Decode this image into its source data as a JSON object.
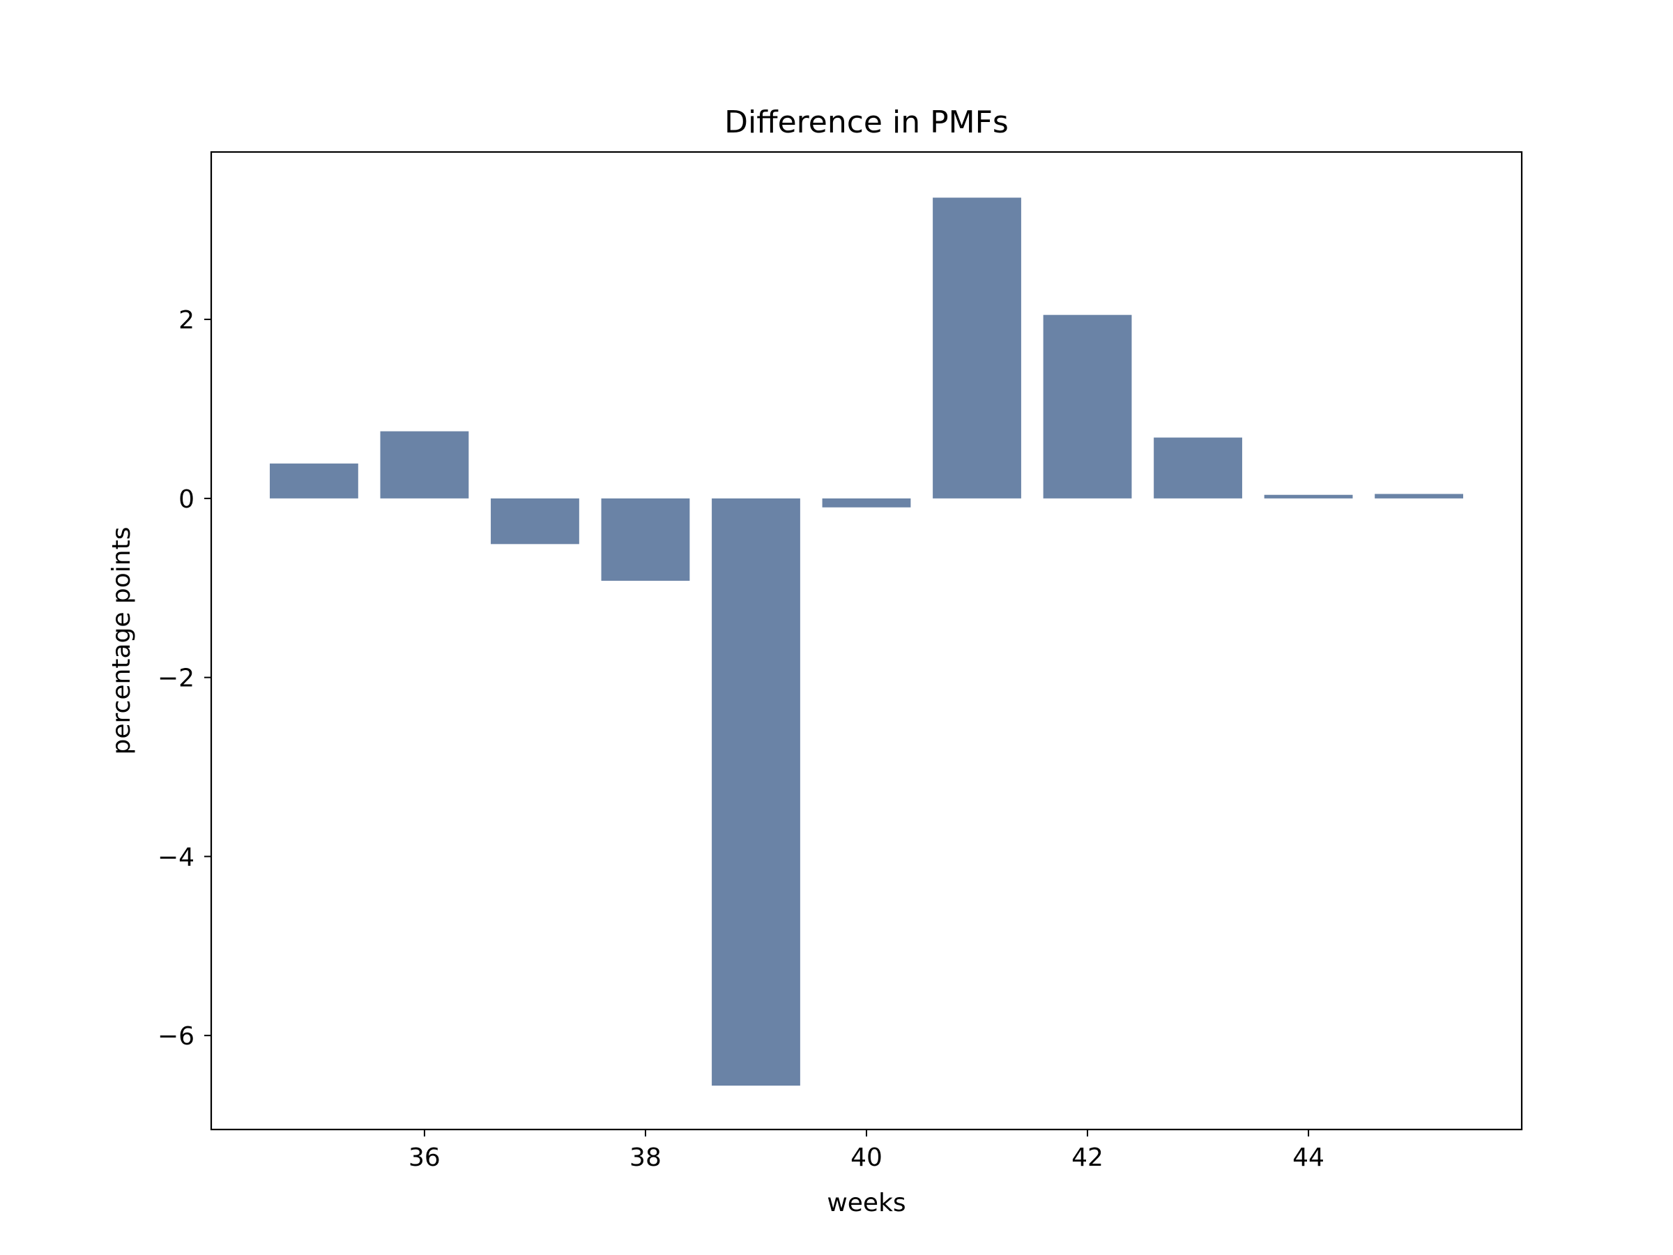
{
  "chart_data": {
    "type": "bar",
    "title": "Difference in PMFs",
    "xlabel": "weeks",
    "ylabel": "percentage points",
    "x": [
      35,
      36,
      37,
      38,
      39,
      40,
      41,
      42,
      43,
      44,
      45
    ],
    "values": [
      0.39,
      0.75,
      -0.51,
      -0.92,
      -6.56,
      -0.1,
      3.36,
      2.05,
      0.68,
      0.04,
      0.05
    ],
    "xlim": [
      34.07,
      45.93
    ],
    "ylim": [
      -7.05,
      3.87
    ],
    "xticks": [
      36,
      38,
      40,
      42,
      44
    ],
    "yticks": [
      -6,
      -4,
      -2,
      0,
      2
    ],
    "bar_color": "#6a83a6",
    "grid": false,
    "legend": "none"
  }
}
